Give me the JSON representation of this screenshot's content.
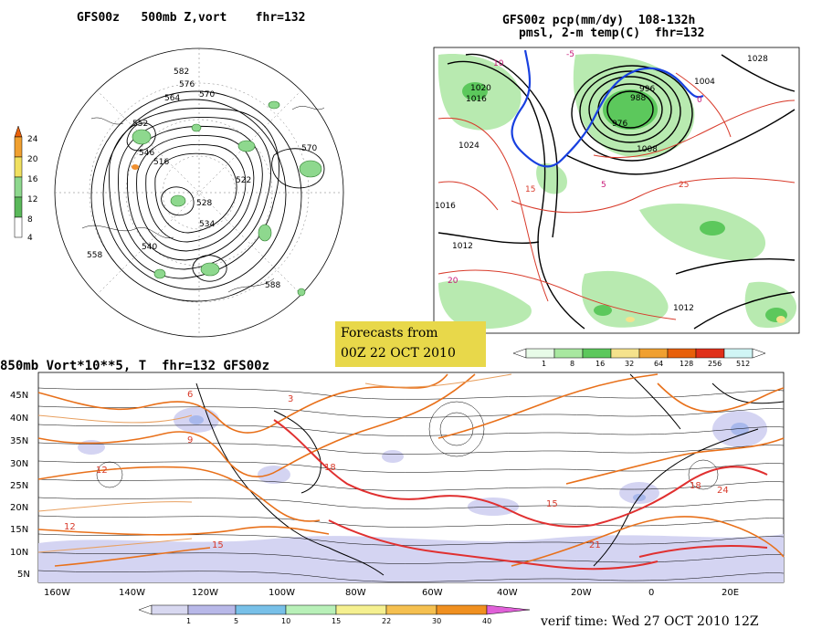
{
  "panels": {
    "top_left": {
      "title": "GFS00z   500mb Z,vort    fhr=132"
    },
    "top_right": {
      "title_line1": "GFS00z pcp(mm/dy)  108-132h",
      "title_line2": "pmsl, 2-m temp(C)  fhr=132"
    },
    "bottom": {
      "title": "850mb Vort*10**5, T  fhr=132 GFS00z"
    }
  },
  "forecast_box": {
    "line1": "Forecasts from",
    "line2": "00Z 22 OCT 2010"
  },
  "verif_time": "verif time: Wed 27 OCT 2010 12Z",
  "colorbars": {
    "vort500": {
      "labels": [
        "24",
        "20",
        "16",
        "12",
        "8",
        "4"
      ],
      "colors": [
        "#e8600a",
        "#f0a030",
        "#f0e060",
        "#8ed88e",
        "#5ab85a",
        "#ffffff"
      ]
    },
    "precip": {
      "labels": [
        "1",
        "8",
        "16",
        "32",
        "64",
        "128",
        "256",
        "512"
      ],
      "colors": [
        "#e8fbe8",
        "#a8e8a0",
        "#5cc85c",
        "#f5e28c",
        "#f0a030",
        "#e8600a",
        "#e0301a",
        "#d0f5f5"
      ]
    },
    "vort850": {
      "labels": [
        "1",
        "5",
        "10",
        "15",
        "22",
        "30",
        "40"
      ],
      "colors": [
        "#d8d8f0",
        "#b8b8e8",
        "#78c0e8",
        "#b8f0b8",
        "#f5f090",
        "#f5c050",
        "#f09020",
        "#e8e0a0"
      ]
    }
  },
  "bottom_axes": {
    "lat_labels": [
      "45N",
      "40N",
      "35N",
      "30N",
      "25N",
      "20N",
      "15N",
      "10N",
      "5N"
    ],
    "lon_labels": [
      "160W",
      "140W",
      "120W",
      "100W",
      "80W",
      "60W",
      "40W",
      "20W",
      "0",
      "20E"
    ]
  },
  "contour_labels": {
    "h500": [
      "582",
      "576",
      "570",
      "564",
      "552",
      "546",
      "540",
      "534",
      "528",
      "522",
      "516",
      "558",
      "570",
      "588"
    ],
    "pmsl": [
      "1020",
      "1016",
      "1024",
      "1012",
      "1008",
      "1004",
      "996",
      "988",
      "976",
      "1028",
      "1016",
      "1012"
    ],
    "temp2m": [
      "10",
      "15",
      "20",
      "25",
      "-5",
      "0",
      "5"
    ],
    "temp850": [
      "12",
      "9",
      "15",
      "18",
      "21",
      "6",
      "3",
      "12",
      "15",
      "24",
      "18"
    ]
  }
}
